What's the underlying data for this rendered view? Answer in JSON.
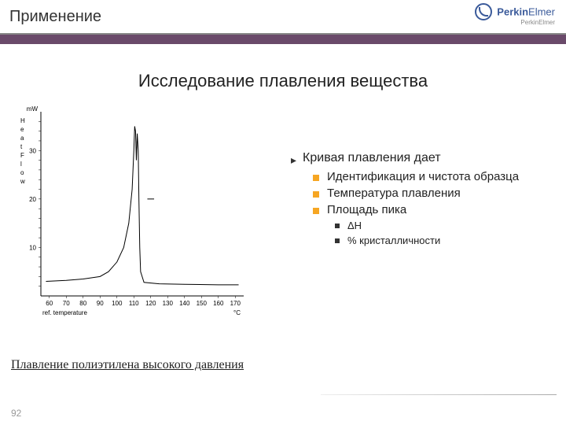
{
  "header": {
    "title": "Применение"
  },
  "logo": {
    "brand_a": "Perkin",
    "brand_b": "Elmer",
    "sub": "PerkinElmer"
  },
  "main_title": "Исследование плавления вещества",
  "chart": {
    "type": "line",
    "ylabel_top": "mW",
    "ylabel_chars": [
      "H",
      "e",
      "a",
      "t",
      "F",
      "l",
      "o",
      "w"
    ],
    "yticks": [
      10,
      20,
      30
    ],
    "xticks": [
      60,
      70,
      80,
      90,
      100,
      110,
      120,
      130,
      140,
      150,
      160,
      170
    ],
    "xlabel": "ref. temperature",
    "xunit": "°C",
    "xlim": [
      55,
      175
    ],
    "ylim": [
      0,
      38
    ],
    "line_color": "#000000",
    "background_color": "#ffffff",
    "tick_fontsize": 8,
    "curve": [
      [
        58,
        3
      ],
      [
        70,
        3.2
      ],
      [
        80,
        3.5
      ],
      [
        90,
        4
      ],
      [
        95,
        5
      ],
      [
        100,
        7
      ],
      [
        104,
        10
      ],
      [
        107,
        15
      ],
      [
        109,
        22
      ],
      [
        110,
        30
      ],
      [
        110.5,
        35
      ],
      [
        111,
        34
      ],
      [
        111.5,
        28
      ],
      [
        112,
        33.5
      ],
      [
        112.6,
        30
      ],
      [
        113,
        20
      ],
      [
        113.5,
        10
      ],
      [
        114,
        5
      ],
      [
        116,
        2.8
      ],
      [
        125,
        2.5
      ],
      [
        140,
        2.4
      ],
      [
        160,
        2.3
      ],
      [
        172,
        2.3
      ]
    ]
  },
  "bullets": {
    "main": "Кривая плавления дает",
    "items": [
      "Идентификация и чистота образца",
      "Температура плавления",
      "Площадь пика"
    ],
    "sub_items": [
      "ΔH",
      "% кристалличности"
    ]
  },
  "caption": "Плавление полиэтилена высокого давления",
  "page_number": "92"
}
